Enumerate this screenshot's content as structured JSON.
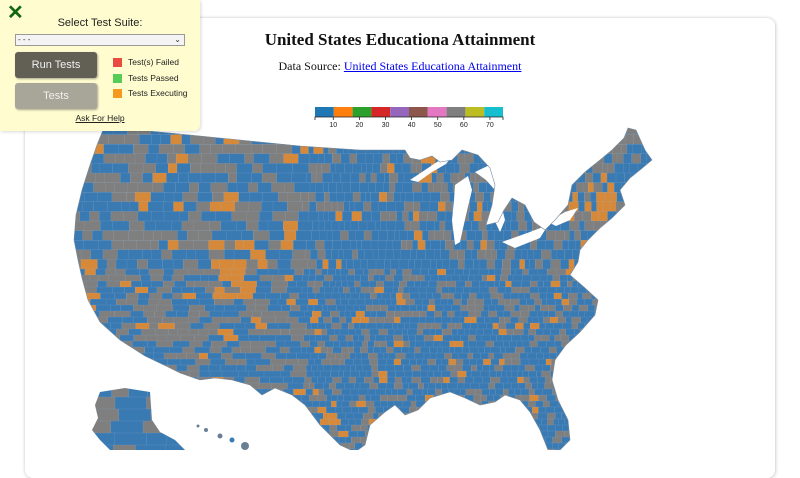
{
  "page": {
    "title": "United States Educationa Attainment",
    "source_label": "Data Source:",
    "source_link_text": "United States Educationa Attainment"
  },
  "test_panel": {
    "close_icon": "close-icon",
    "select_label": "Select Test Suite:",
    "select_value": "- - -",
    "run_button": "Run Tests",
    "tests_button": "Tests",
    "status_legend": [
      {
        "label": "Test(s) Failed",
        "color": "#ea4b3f"
      },
      {
        "label": "Tests Passed",
        "color": "#55cc55"
      },
      {
        "label": "Tests Executing",
        "color": "#f59a1e"
      }
    ],
    "help_link": "Ask For Help"
  },
  "colors": {
    "panel_bg": "#fffdd0",
    "map_primary": "#3a7ab2",
    "map_secondary": "#7f7f7f",
    "map_highlight": "#d7893a",
    "county_border": "#8fb6d8"
  },
  "chart_data": {
    "type": "heatmap",
    "subtype": "choropleth",
    "title": "United States Educationa Attainment",
    "subtitle": "Data Source: United States Educationa Attainment",
    "legend": {
      "position": "top-center",
      "tick_labels": [
        "10",
        "20",
        "30",
        "40",
        "50",
        "60",
        "70"
      ],
      "tick_values": [
        10,
        20,
        30,
        40,
        50,
        60,
        70
      ],
      "domain": [
        3,
        75
      ],
      "bins": [
        {
          "color": "#1f77b4"
        },
        {
          "color": "#ff7f0e"
        },
        {
          "color": "#2ca02c"
        },
        {
          "color": "#d62728"
        },
        {
          "color": "#9467bd"
        },
        {
          "color": "#8c564b"
        },
        {
          "color": "#e377c2"
        },
        {
          "color": "#7f7f7f"
        },
        {
          "color": "#bcbd22"
        },
        {
          "color": "#17becf"
        }
      ]
    },
    "regions": "US counties (incl. Alaska and Hawaii insets)",
    "observed_distribution": {
      "dominant_colors": [
        "blue (#1f77b4-like)",
        "gray (#7f7f7f-like)"
      ],
      "highlight_color": "orange (#ff7f0e-like)",
      "notes": "Most counties blue or gray; orange clusters in Colorado Front Range, Utah, Northeast metro corridors, California coast, scattered metro counties"
    },
    "grid": false
  }
}
